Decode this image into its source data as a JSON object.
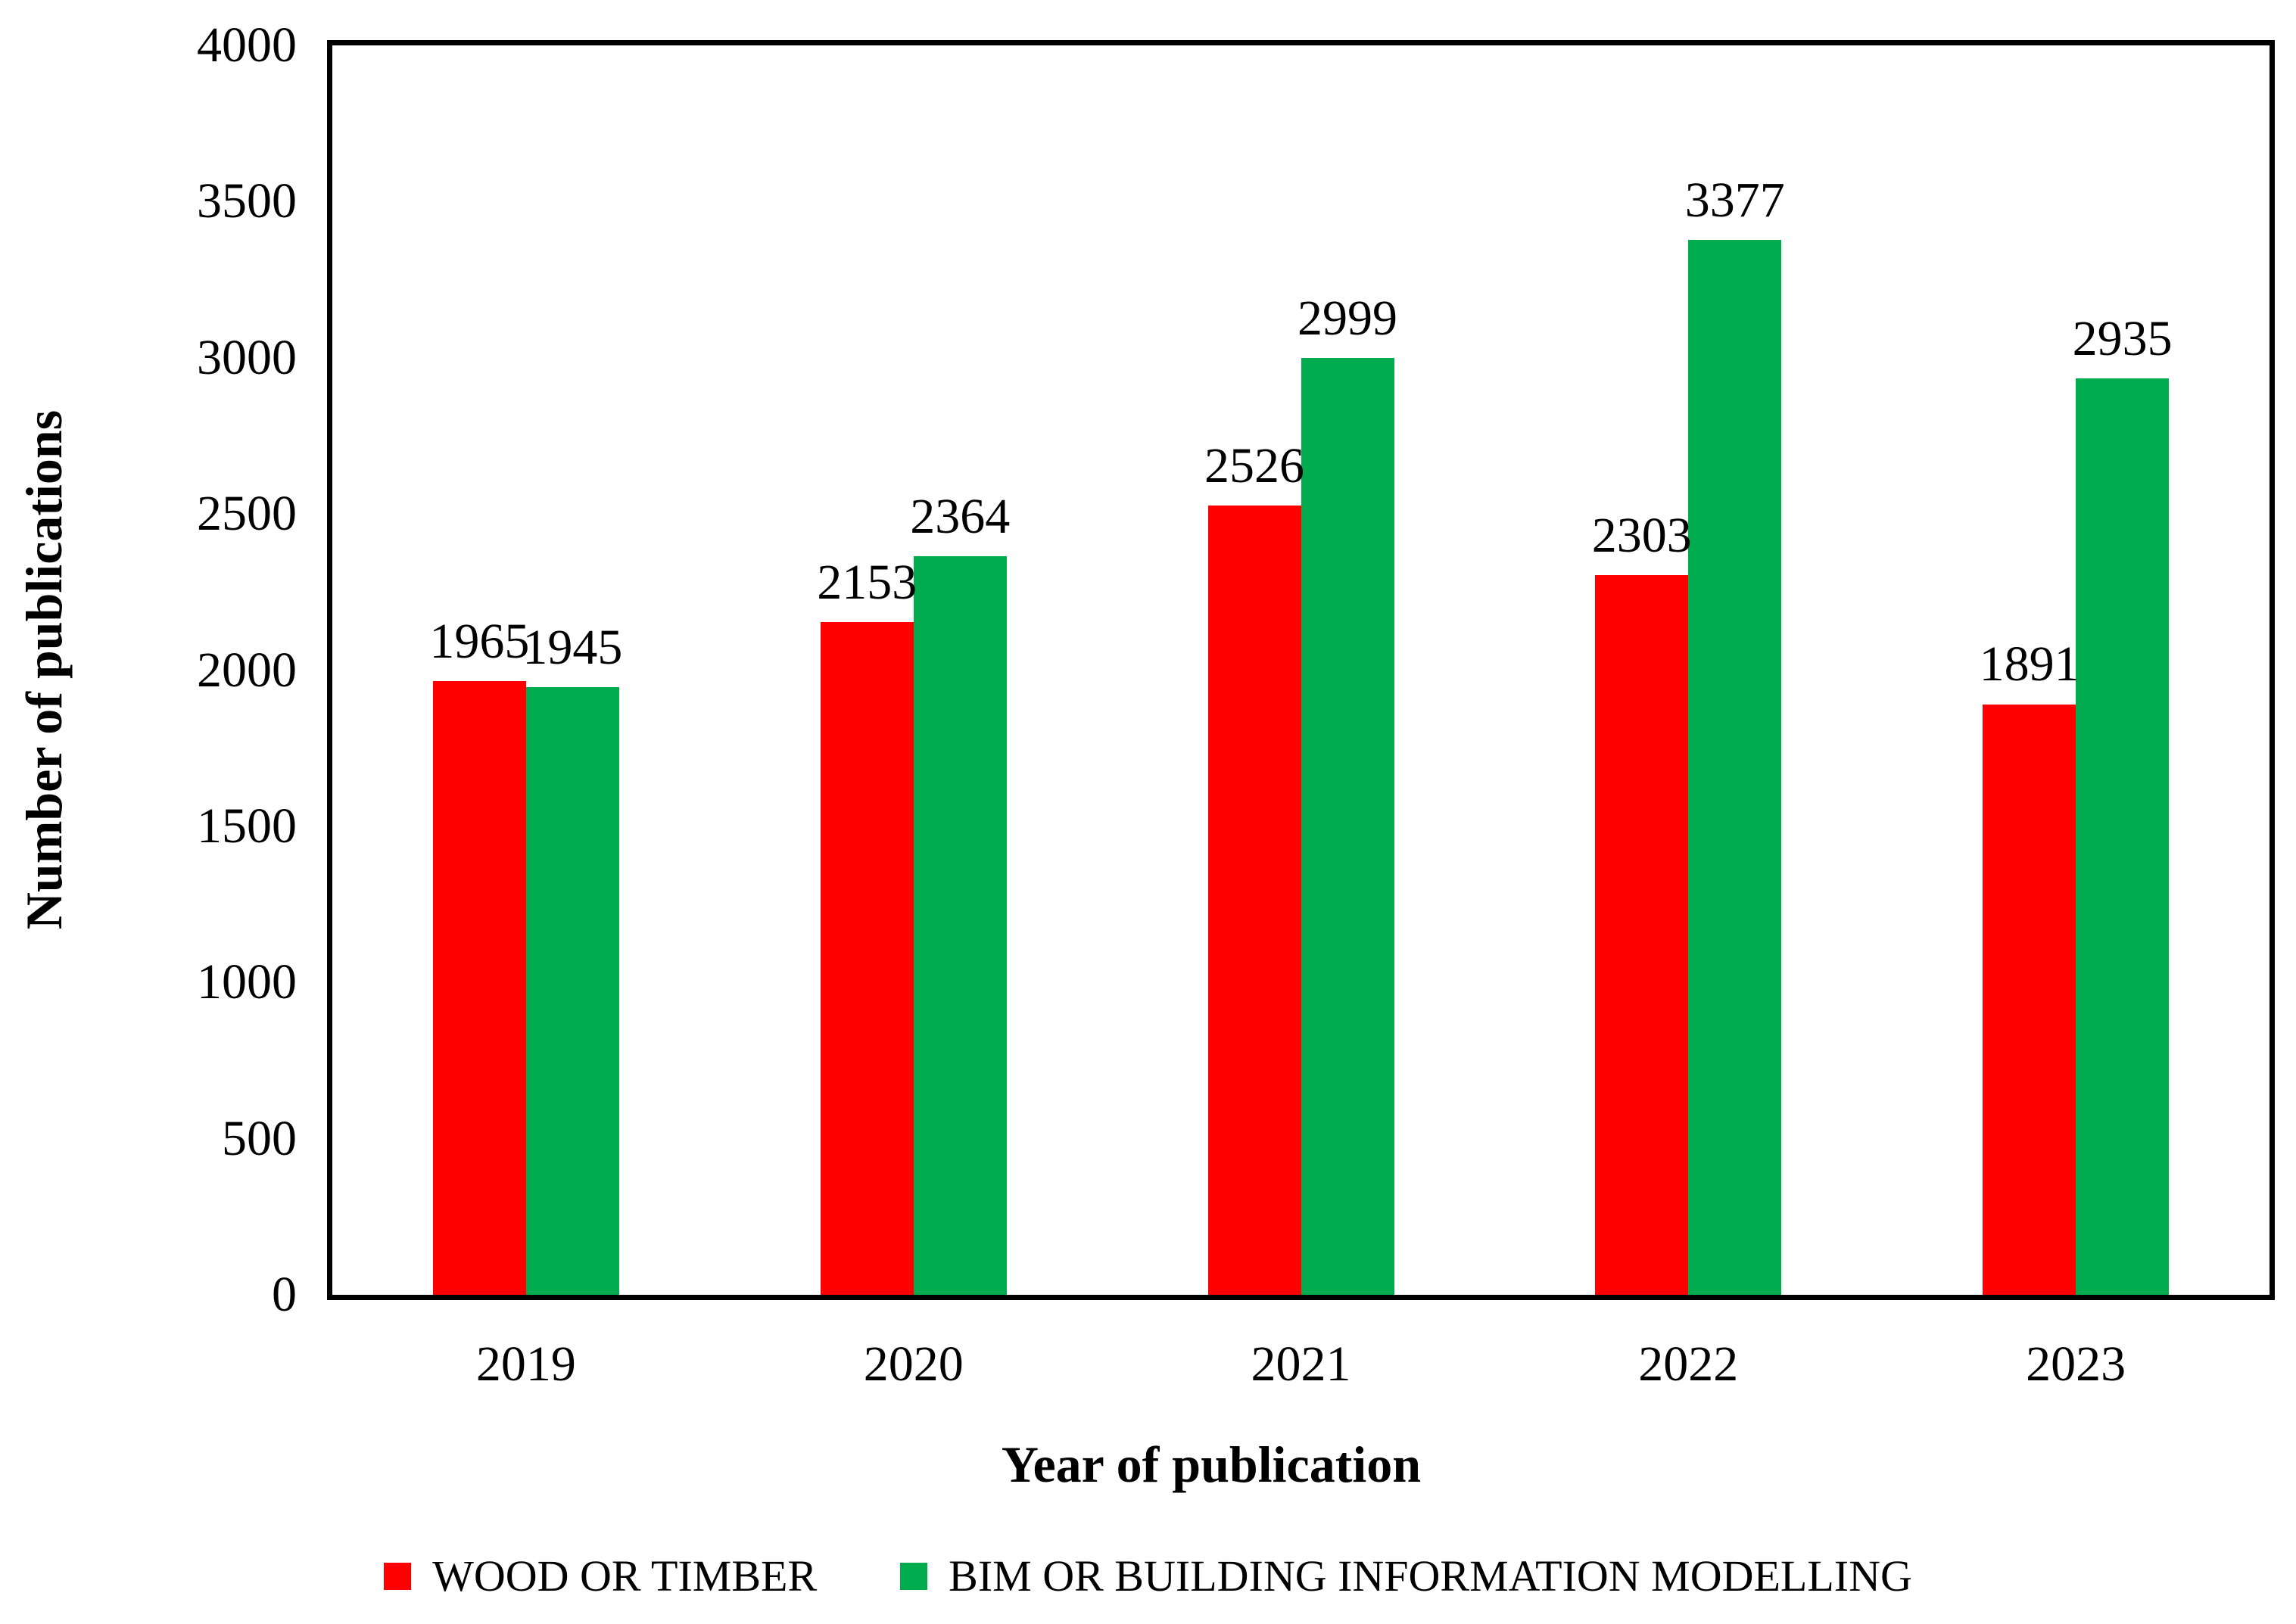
{
  "chart_data": {
    "type": "bar",
    "title": "",
    "categories": [
      "2019",
      "2020",
      "2021",
      "2022",
      "2023"
    ],
    "series": [
      {
        "name": "WOOD OR TIMBER",
        "color": "#FF0000",
        "values": [
          1965,
          2153,
          2526,
          2303,
          1891
        ]
      },
      {
        "name": "BIM OR BUILDING INFORMATION MODELLING",
        "color": "#00AC4E",
        "values": [
          1945,
          2364,
          2999,
          3377,
          2935
        ]
      }
    ],
    "xlabel": "Year of publication",
    "ylabel": "Number of publications",
    "ylim": [
      0,
      4000
    ],
    "yticks": [
      0,
      500,
      1000,
      1500,
      2000,
      2500,
      3000,
      3500,
      4000
    ],
    "grid": false,
    "data_labels": true,
    "legend_position": "bottom",
    "plot_border_color": "#000000",
    "background_color": "#FFFFFF"
  }
}
